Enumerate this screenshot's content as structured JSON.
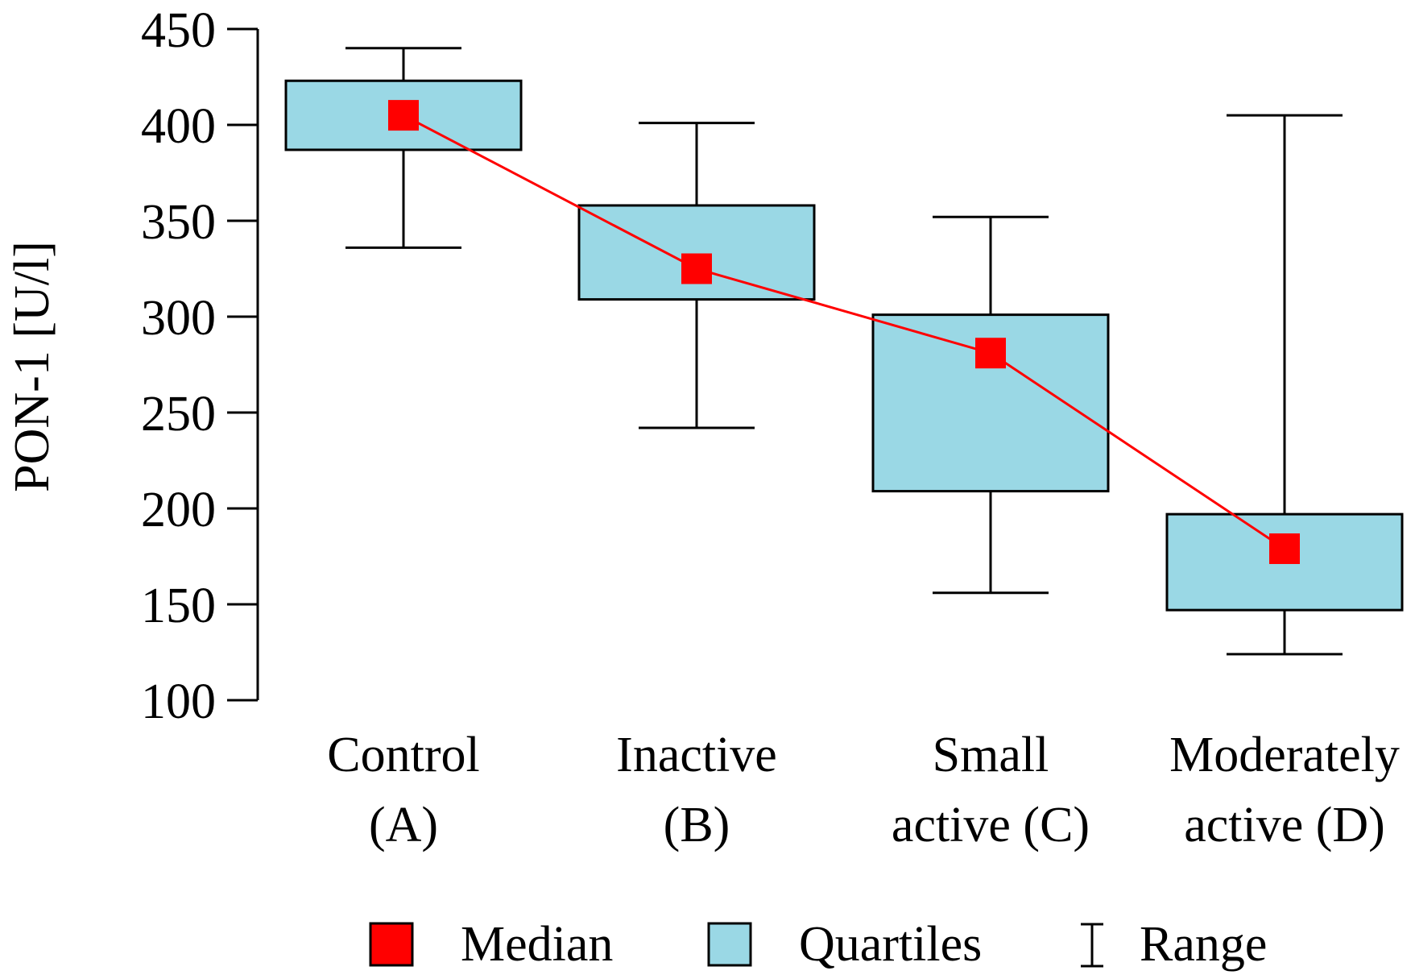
{
  "chart_data": {
    "type": "box",
    "ylabel": "PON-1 [U/l]",
    "ylim": [
      100,
      450
    ],
    "yticks": [
      "100",
      "150",
      "200",
      "250",
      "300",
      "350",
      "400",
      "450"
    ],
    "categories": [
      {
        "line1": "Control",
        "line2": "(A)"
      },
      {
        "line1": "Inactive",
        "line2": "(B)"
      },
      {
        "line1": "Small",
        "line2": "active (C)"
      },
      {
        "line1": "Moderately",
        "line2": "active (D)"
      }
    ],
    "series": [
      {
        "name": "Median",
        "values": [
          405,
          325,
          281,
          179
        ]
      },
      {
        "name": "Quartiles",
        "q1": [
          387,
          309,
          209,
          147
        ],
        "q3": [
          423,
          358,
          301,
          197
        ]
      },
      {
        "name": "Range",
        "min": [
          336,
          242,
          156,
          124
        ],
        "max": [
          440,
          401,
          352,
          405
        ]
      }
    ],
    "legend": [
      {
        "label": "Median",
        "symbol": "square-red"
      },
      {
        "label": "Quartiles",
        "symbol": "square-blue"
      },
      {
        "label": "Range",
        "symbol": "i-bar"
      }
    ],
    "colors": {
      "median": "#ff0000",
      "box_fill": "#9ad8e5",
      "line": "#000000"
    }
  }
}
